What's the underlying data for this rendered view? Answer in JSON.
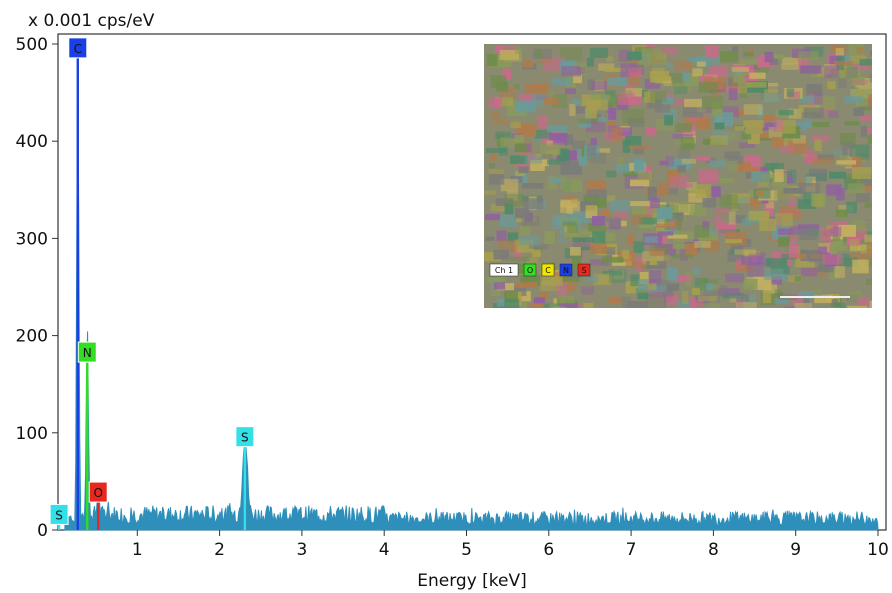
{
  "chart_data": {
    "type": "line",
    "title": "",
    "ylabel_unit": "x 0.001 cps/eV",
    "xlabel": "Energy [keV]",
    "xlim": [
      0,
      10
    ],
    "ylim": [
      0,
      500
    ],
    "x_ticks": [
      "1",
      "2",
      "3",
      "4",
      "5",
      "6",
      "7",
      "8",
      "9",
      "10"
    ],
    "y_ticks": [
      "0",
      "100",
      "200",
      "300",
      "400",
      "500"
    ],
    "grid": false,
    "series": [
      {
        "fill_color": "#2e8fba",
        "peaks": [
          {
            "x": 0.18,
            "y": 8
          },
          {
            "x": 0.277,
            "y": 495
          },
          {
            "x": 0.392,
            "y": 200
          },
          {
            "x": 0.525,
            "y": 28
          },
          {
            "x": 2.307,
            "y": 82
          }
        ],
        "background_level": 15
      }
    ],
    "element_markers": [
      {
        "symbol": "C",
        "x": 0.277,
        "y": 495,
        "color": "#1a3fe6"
      },
      {
        "symbol": "N",
        "x": 0.392,
        "y": 182,
        "color": "#33dd22"
      },
      {
        "symbol": "S",
        "x": 2.307,
        "y": 95,
        "color": "#33e0e8"
      },
      {
        "symbol": "O",
        "x": 0.525,
        "y": 38,
        "color": "#e8281e"
      },
      {
        "symbol": "S",
        "x": 0.05,
        "y": 15,
        "color": "#33e0e8"
      }
    ]
  },
  "inset": {
    "legend_items": [
      {
        "label": "Ch 1",
        "color": "#ffffff"
      },
      {
        "label": "O",
        "color": "#33dd22"
      },
      {
        "label": "C",
        "color": "#f2e600"
      },
      {
        "label": "N",
        "color": "#1a3fe6"
      },
      {
        "label": "S",
        "color": "#e8281e"
      }
    ],
    "palette": [
      "#6e8c4a",
      "#a8a04e",
      "#c96a8a",
      "#4d8a6a",
      "#8a9a5a",
      "#b07a4a",
      "#9060a0",
      "#6a9a9a",
      "#c4b060",
      "#7a7a7a"
    ]
  }
}
